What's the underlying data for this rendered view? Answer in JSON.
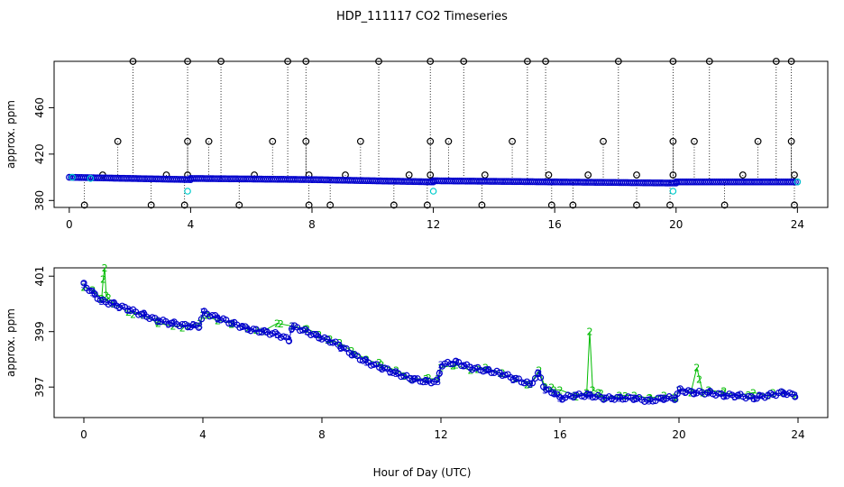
{
  "chart_data": {
    "title": "HDP_111117  CO2 Timeseries",
    "xlabel": "Hour of Day (UTC)",
    "colors": {
      "black": "#000000",
      "blue": "#0000cc",
      "cyan": "#00cccc",
      "green": "#00bb00"
    },
    "panels": [
      {
        "type": "scatter",
        "ylabel": "approx. ppm",
        "xlim": [
          -0.5,
          25
        ],
        "ylim": [
          374,
          400
        ],
        "ylim_display": [
          374,
          500
        ],
        "xticks": [
          0,
          4,
          8,
          12,
          16,
          20,
          24
        ],
        "xtick_labels": [
          "0",
          "4",
          "8",
          "12",
          "16",
          "20",
          "24"
        ],
        "yticks": [
          380,
          420,
          460
        ],
        "ytick_labels": [
          "380",
          "420",
          "460"
        ],
        "baseline_segments": [
          {
            "x0": 0.0,
            "x1": 4.0,
            "y0": 400,
            "y1": 398
          },
          {
            "x0": 4.0,
            "x1": 8.0,
            "y0": 399,
            "y1": 398
          },
          {
            "x0": 8.0,
            "x1": 12.0,
            "y0": 398,
            "y1": 396
          },
          {
            "x0": 12.0,
            "x1": 16.0,
            "y0": 397,
            "y1": 396
          },
          {
            "x0": 16.0,
            "x1": 20.0,
            "y0": 396,
            "y1": 395
          },
          {
            "x0": 20.0,
            "x1": 24.0,
            "y0": 396,
            "y1": 396
          }
        ],
        "cyan_points": [
          {
            "x": 0.1,
            "y": 400
          },
          {
            "x": 0.7,
            "y": 399
          },
          {
            "x": 3.9,
            "y": 388
          },
          {
            "x": 12.0,
            "y": 388
          },
          {
            "x": 19.9,
            "y": 388
          },
          {
            "x": 24.0,
            "y": 396
          }
        ],
        "outliers_high": [
          2.1,
          3.9,
          5.0,
          7.2,
          7.8,
          10.2,
          11.9,
          13.0,
          15.1,
          15.7,
          18.1,
          19.9,
          21.1,
          23.3,
          23.8
        ],
        "outliers_431": [
          1.6,
          3.9,
          4.6,
          6.7,
          7.8,
          9.6,
          11.9,
          12.5,
          14.6,
          17.6,
          19.9,
          20.6,
          22.7,
          23.8
        ],
        "outliers_402": [
          1.1,
          3.2,
          3.9,
          6.1,
          7.9,
          9.1,
          11.2,
          11.9,
          13.7,
          15.8,
          17.1,
          18.7,
          19.9,
          22.2,
          23.9
        ],
        "outliers_376": [
          0.5,
          2.7,
          3.8,
          5.6,
          7.9,
          8.6,
          10.7,
          11.8,
          13.6,
          15.9,
          16.6,
          18.7,
          19.8,
          21.6,
          23.9
        ]
      },
      {
        "type": "line",
        "ylabel": "approx. ppm",
        "xlim": [
          -1,
          25
        ],
        "ylim": [
          395.9,
          401.3
        ],
        "xticks": [
          0,
          4,
          8,
          12,
          16,
          20,
          24
        ],
        "xtick_labels": [
          "0",
          "4",
          "8",
          "12",
          "16",
          "20",
          "24"
        ],
        "yticks": [
          397,
          399,
          401
        ],
        "ytick_labels": [
          "397",
          "399",
          "401"
        ],
        "series": [
          {
            "marker": "2",
            "color": "#00bb00",
            "x": [
              0.0,
              0.3,
              0.6,
              0.65,
              0.7,
              0.75,
              1.0,
              1.5,
              2.0,
              2.5,
              3.0,
              3.5,
              3.9,
              4.0,
              4.5,
              5.0,
              5.5,
              6.0,
              6.5,
              7.0,
              7.5,
              7.9,
              8.2,
              8.6,
              9.0,
              9.5,
              10.0,
              10.5,
              11.0,
              11.5,
              11.9,
              12.0,
              12.5,
              13.0,
              13.5,
              14.0,
              14.5,
              15.0,
              15.3,
              15.5,
              15.8,
              16.0,
              16.5,
              16.9,
              17.0,
              17.1,
              17.3,
              17.5,
              18.0,
              18.5,
              19.0,
              19.5,
              19.9,
              20.0,
              20.4,
              20.6,
              20.8,
              21.0,
              21.5,
              22.0,
              22.5,
              23.0,
              23.5,
              23.9
            ],
            "y": [
              400.6,
              400.5,
              400.2,
              400.9,
              401.3,
              400.3,
              400.0,
              399.7,
              399.6,
              399.3,
              399.2,
              399.2,
              399.3,
              399.6,
              399.4,
              399.3,
              399.1,
              399.0,
              399.3,
              399.2,
              399.1,
              398.9,
              398.7,
              398.6,
              398.3,
              398.0,
              397.8,
              397.6,
              397.3,
              397.3,
              397.3,
              397.7,
              397.8,
              397.6,
              397.7,
              397.5,
              397.3,
              397.1,
              397.6,
              397.0,
              396.9,
              396.9,
              396.7,
              396.8,
              399.0,
              396.9,
              396.8,
              396.6,
              396.7,
              396.7,
              396.6,
              396.7,
              396.6,
              396.9,
              396.8,
              397.7,
              396.8,
              396.9,
              396.8,
              396.7,
              396.8,
              396.7,
              396.8,
              396.7
            ]
          },
          {
            "marker": "3",
            "color": "#0000cc",
            "x": [
              0.0,
              0.3,
              0.6,
              1.0,
              1.5,
              2.0,
              2.5,
              3.0,
              3.5,
              3.9,
              4.0,
              4.5,
              5.0,
              5.5,
              6.0,
              6.5,
              6.9,
              7.0,
              7.5,
              7.9,
              8.2,
              8.6,
              9.0,
              9.5,
              10.0,
              10.5,
              11.0,
              11.5,
              11.9,
              12.0,
              12.5,
              13.0,
              13.5,
              14.0,
              14.5,
              15.0,
              15.3,
              15.5,
              15.8,
              16.0,
              16.5,
              17.0,
              17.5,
              18.0,
              18.5,
              19.0,
              19.5,
              19.9,
              20.0,
              20.5,
              21.0,
              21.5,
              22.0,
              22.5,
              23.0,
              23.5,
              23.9
            ],
            "y": [
              400.7,
              400.4,
              400.1,
              400.0,
              399.8,
              399.6,
              399.4,
              399.3,
              399.2,
              399.2,
              399.7,
              399.5,
              399.3,
              399.1,
              399.0,
              398.9,
              398.7,
              399.2,
              399.0,
              398.8,
              398.7,
              398.5,
              398.2,
              397.9,
              397.7,
              397.5,
              397.3,
              397.2,
              397.2,
              397.8,
              397.9,
              397.7,
              397.6,
              397.5,
              397.3,
              397.1,
              397.5,
              396.9,
              396.8,
              396.6,
              396.7,
              396.7,
              396.6,
              396.6,
              396.6,
              396.5,
              396.6,
              396.6,
              396.9,
              396.8,
              396.8,
              396.7,
              396.7,
              396.6,
              396.7,
              396.8,
              396.7
            ]
          }
        ]
      }
    ]
  }
}
